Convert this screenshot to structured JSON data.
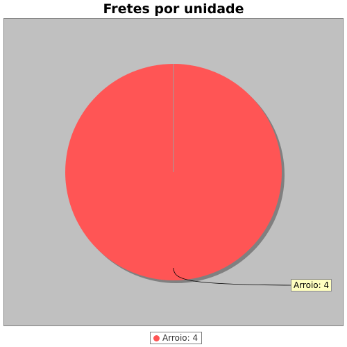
{
  "chart_data": {
    "type": "pie",
    "title": "Fretes por unidade",
    "slices": [
      {
        "label": "Arroio",
        "value": 4,
        "color": "#ff5555"
      }
    ],
    "labels": [
      "Arroio: 4"
    ],
    "legend": {
      "placement": "bottom",
      "entries": [
        "Arroio: 4"
      ]
    }
  },
  "colors": {
    "plot_background": "#c0c0c0",
    "slice_outline": "#a0a0a0",
    "shadow": "#808080",
    "callout_background": "#ffffc0"
  }
}
